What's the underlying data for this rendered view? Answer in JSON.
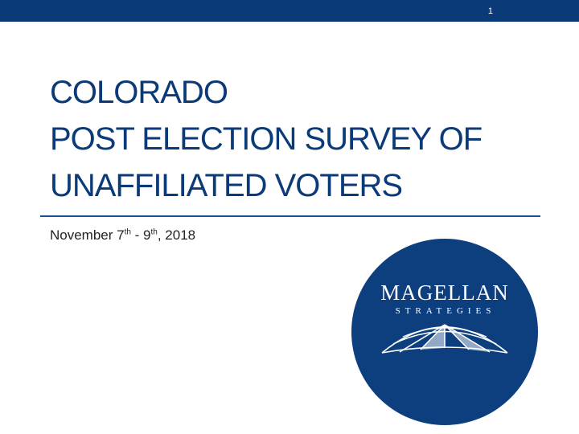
{
  "header": {
    "slide_number": "1"
  },
  "title": {
    "line1": "COLORADO",
    "line2": "POST ELECTION SURVEY OF",
    "line3": "UNAFFILIATED VOTERS"
  },
  "subtitle": {
    "prefix": "November 7",
    "sup1": "th",
    "middle": " - 9",
    "sup2": "th",
    "suffix": ", 2018"
  },
  "logo": {
    "name": "MAGELLAN",
    "tagline": "STRATEGIES",
    "circle_color": "#0d3f7f",
    "icon": "globe-grid-icon"
  },
  "colors": {
    "brand_blue": "#0b3a78",
    "rule_blue": "#1b4f8f"
  }
}
